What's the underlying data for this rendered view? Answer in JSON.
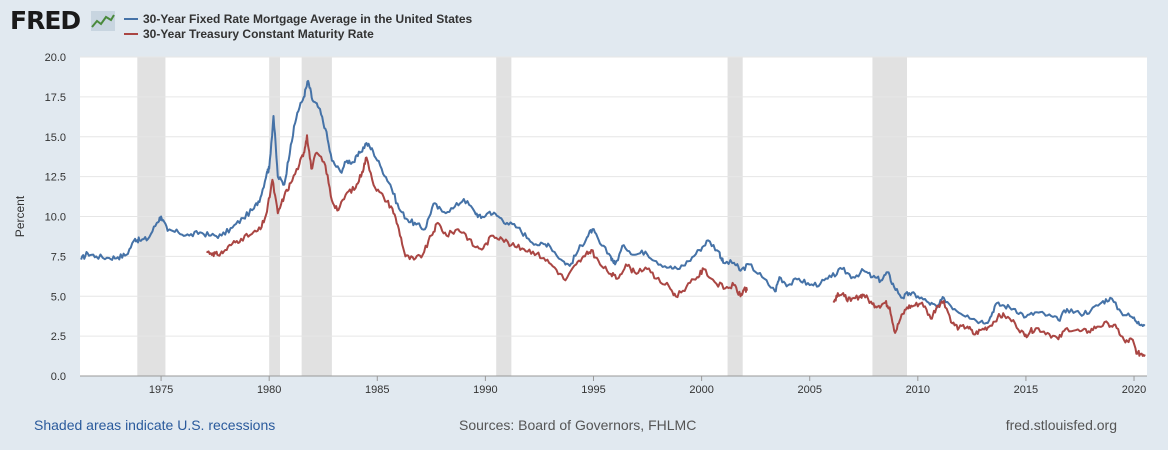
{
  "logo": {
    "text": "FRED",
    "icon": "chart-graph-icon"
  },
  "footer": {
    "recession_note": "Shaded areas indicate U.S. recessions",
    "sources": "Sources: Board of Governors, FHLMC",
    "site": "fred.stlouisfed.org"
  },
  "chart_data": {
    "type": "line",
    "ylabel": "Percent",
    "xlim": [
      1971.25,
      2020.6
    ],
    "ylim": [
      0,
      20
    ],
    "yticks": [
      0.0,
      2.5,
      5.0,
      7.5,
      10.0,
      12.5,
      15.0,
      17.5,
      20.0
    ],
    "ytick_labels": [
      "0.0",
      "2.5",
      "5.0",
      "7.5",
      "10.0",
      "12.5",
      "15.0",
      "17.5",
      "20.0"
    ],
    "xticks": [
      1975,
      1980,
      1985,
      1990,
      1995,
      2000,
      2005,
      2010,
      2015,
      2020
    ],
    "xtick_labels": [
      "1975",
      "1980",
      "1985",
      "1990",
      "1995",
      "2000",
      "2005",
      "2010",
      "2015",
      "2020"
    ],
    "grid": true,
    "legend_position": "top-left",
    "recessions": [
      [
        1973.9,
        1975.2
      ],
      [
        1980.0,
        1980.5
      ],
      [
        1981.5,
        1982.9
      ],
      [
        1990.5,
        1991.2
      ],
      [
        2001.2,
        2001.9
      ],
      [
        2007.9,
        2009.5
      ]
    ],
    "series": [
      {
        "name": "30-Year Fixed Rate Mortgage Average in the United States",
        "color": "#4572a7",
        "points": [
          [
            1971.3,
            7.3
          ],
          [
            1971.6,
            7.7
          ],
          [
            1972.0,
            7.5
          ],
          [
            1972.6,
            7.4
          ],
          [
            1973.0,
            7.45
          ],
          [
            1973.4,
            7.6
          ],
          [
            1973.8,
            8.6
          ],
          [
            1974.0,
            8.5
          ],
          [
            1974.4,
            8.6
          ],
          [
            1974.8,
            9.6
          ],
          [
            1975.0,
            10.0
          ],
          [
            1975.3,
            9.1
          ],
          [
            1975.8,
            9.0
          ],
          [
            1976.3,
            8.8
          ],
          [
            1976.8,
            9.0
          ],
          [
            1977.3,
            8.8
          ],
          [
            1977.8,
            8.8
          ],
          [
            1978.3,
            9.3
          ],
          [
            1978.8,
            9.9
          ],
          [
            1979.3,
            10.5
          ],
          [
            1979.6,
            11.2
          ],
          [
            1979.9,
            12.8
          ],
          [
            1980.0,
            13.0
          ],
          [
            1980.2,
            16.3
          ],
          [
            1980.4,
            12.5
          ],
          [
            1980.7,
            12.0
          ],
          [
            1981.0,
            14.5
          ],
          [
            1981.3,
            16.5
          ],
          [
            1981.6,
            17.5
          ],
          [
            1981.8,
            18.5
          ],
          [
            1982.0,
            17.3
          ],
          [
            1982.3,
            16.8
          ],
          [
            1982.6,
            15.5
          ],
          [
            1982.9,
            13.5
          ],
          [
            1983.3,
            12.8
          ],
          [
            1983.6,
            13.5
          ],
          [
            1983.9,
            13.4
          ],
          [
            1984.2,
            14.0
          ],
          [
            1984.5,
            14.6
          ],
          [
            1984.8,
            14.1
          ],
          [
            1985.2,
            13.0
          ],
          [
            1985.6,
            12.0
          ],
          [
            1986.0,
            10.5
          ],
          [
            1986.4,
            9.8
          ],
          [
            1986.8,
            9.5
          ],
          [
            1987.2,
            9.2
          ],
          [
            1987.6,
            10.8
          ],
          [
            1988.0,
            10.3
          ],
          [
            1988.5,
            10.5
          ],
          [
            1989.0,
            11.1
          ],
          [
            1989.5,
            10.3
          ],
          [
            1989.8,
            9.9
          ],
          [
            1990.2,
            10.3
          ],
          [
            1990.6,
            10.0
          ],
          [
            1991.0,
            9.6
          ],
          [
            1991.5,
            9.3
          ],
          [
            1992.0,
            8.6
          ],
          [
            1992.5,
            8.2
          ],
          [
            1992.9,
            8.3
          ],
          [
            1993.5,
            7.3
          ],
          [
            1993.9,
            6.9
          ],
          [
            1994.3,
            7.9
          ],
          [
            1994.7,
            8.7
          ],
          [
            1994.95,
            9.2
          ],
          [
            1995.3,
            8.3
          ],
          [
            1995.8,
            7.5
          ],
          [
            1996.0,
            7.0
          ],
          [
            1996.4,
            8.2
          ],
          [
            1996.9,
            7.6
          ],
          [
            1997.4,
            7.8
          ],
          [
            1997.9,
            7.2
          ],
          [
            1998.5,
            6.8
          ],
          [
            1998.9,
            6.7
          ],
          [
            1999.4,
            7.2
          ],
          [
            1999.9,
            7.9
          ],
          [
            2000.3,
            8.5
          ],
          [
            2000.8,
            7.8
          ],
          [
            2001.0,
            7.1
          ],
          [
            2001.5,
            7.1
          ],
          [
            2001.8,
            6.6
          ],
          [
            2002.2,
            7.0
          ],
          [
            2002.8,
            6.2
          ],
          [
            2003.4,
            5.3
          ],
          [
            2003.6,
            6.2
          ],
          [
            2004.0,
            5.7
          ],
          [
            2004.5,
            6.1
          ],
          [
            2005.0,
            5.7
          ],
          [
            2005.5,
            5.8
          ],
          [
            2006.0,
            6.2
          ],
          [
            2006.5,
            6.7
          ],
          [
            2007.0,
            6.2
          ],
          [
            2007.5,
            6.6
          ],
          [
            2007.9,
            6.2
          ],
          [
            2008.3,
            6.0
          ],
          [
            2008.6,
            6.5
          ],
          [
            2008.9,
            5.6
          ],
          [
            2009.3,
            4.9
          ],
          [
            2009.6,
            5.2
          ],
          [
            2010.0,
            5.0
          ],
          [
            2010.5,
            4.6
          ],
          [
            2010.9,
            4.3
          ],
          [
            2011.2,
            4.9
          ],
          [
            2011.7,
            4.2
          ],
          [
            2012.3,
            3.8
          ],
          [
            2012.9,
            3.4
          ],
          [
            2013.3,
            3.5
          ],
          [
            2013.6,
            4.5
          ],
          [
            2014.0,
            4.4
          ],
          [
            2014.5,
            4.2
          ],
          [
            2015.0,
            3.7
          ],
          [
            2015.5,
            4.0
          ],
          [
            2016.0,
            3.8
          ],
          [
            2016.5,
            3.5
          ],
          [
            2016.9,
            4.2
          ],
          [
            2017.5,
            3.9
          ],
          [
            2018.0,
            4.1
          ],
          [
            2018.5,
            4.6
          ],
          [
            2018.9,
            4.9
          ],
          [
            2019.4,
            4.0
          ],
          [
            2019.9,
            3.7
          ],
          [
            2020.2,
            3.4
          ],
          [
            2020.5,
            3.15
          ]
        ]
      },
      {
        "name": "30-Year Treasury Constant Maturity Rate",
        "color": "#aa4643",
        "segments": [
          [
            [
              1977.1,
              7.8
            ],
            [
              1977.4,
              7.7
            ],
            [
              1977.6,
              7.6
            ],
            [
              1977.9,
              7.8
            ],
            [
              1978.3,
              8.3
            ],
            [
              1978.7,
              8.6
            ],
            [
              1979.2,
              8.9
            ],
            [
              1979.6,
              9.2
            ],
            [
              1979.9,
              10.3
            ],
            [
              1980.15,
              12.3
            ],
            [
              1980.4,
              10.2
            ],
            [
              1980.7,
              11.3
            ],
            [
              1981.0,
              12.1
            ],
            [
              1981.4,
              13.3
            ],
            [
              1981.6,
              14.0
            ],
            [
              1981.75,
              15.1
            ],
            [
              1981.95,
              13.0
            ],
            [
              1982.2,
              14.0
            ],
            [
              1982.6,
              13.2
            ],
            [
              1982.9,
              11.0
            ],
            [
              1983.2,
              10.4
            ],
            [
              1983.6,
              11.5
            ],
            [
              1984.0,
              11.8
            ],
            [
              1984.3,
              12.8
            ],
            [
              1984.5,
              13.7
            ],
            [
              1984.9,
              11.8
            ],
            [
              1985.3,
              11.2
            ],
            [
              1985.7,
              10.5
            ],
            [
              1986.0,
              9.2
            ],
            [
              1986.3,
              7.5
            ],
            [
              1986.7,
              7.3
            ],
            [
              1987.1,
              7.6
            ],
            [
              1987.5,
              8.8
            ],
            [
              1987.8,
              9.6
            ],
            [
              1988.2,
              8.8
            ],
            [
              1988.7,
              9.2
            ],
            [
              1989.0,
              9.0
            ],
            [
              1989.5,
              8.1
            ],
            [
              1989.9,
              8.0
            ],
            [
              1990.3,
              8.8
            ],
            [
              1990.7,
              8.7
            ],
            [
              1991.2,
              8.2
            ],
            [
              1991.7,
              8.0
            ],
            [
              1992.2,
              7.8
            ],
            [
              1992.7,
              7.4
            ],
            [
              1993.2,
              6.8
            ],
            [
              1993.7,
              6.0
            ],
            [
              1994.2,
              7.0
            ],
            [
              1994.6,
              7.5
            ],
            [
              1994.9,
              7.9
            ],
            [
              1995.3,
              7.0
            ],
            [
              1995.8,
              6.4
            ],
            [
              1996.1,
              6.1
            ],
            [
              1996.5,
              7.0
            ],
            [
              1996.9,
              6.5
            ],
            [
              1997.4,
              6.8
            ],
            [
              1997.9,
              6.1
            ],
            [
              1998.5,
              5.6
            ],
            [
              1998.8,
              5.0
            ],
            [
              1999.3,
              5.6
            ],
            [
              1999.8,
              6.2
            ],
            [
              2000.1,
              6.7
            ],
            [
              2000.6,
              5.9
            ],
            [
              2001.1,
              5.5
            ],
            [
              2001.5,
              5.7
            ],
            [
              2001.8,
              5.0
            ],
            [
              2001.95,
              5.4
            ],
            [
              2002.1,
              5.35
            ]
          ],
          [
            [
              2006.1,
              4.6
            ],
            [
              2006.3,
              5.2
            ],
            [
              2006.6,
              5.0
            ],
            [
              2006.9,
              4.7
            ],
            [
              2007.3,
              5.0
            ],
            [
              2007.5,
              5.1
            ],
            [
              2007.9,
              4.5
            ],
            [
              2008.2,
              4.4
            ],
            [
              2008.5,
              4.6
            ],
            [
              2008.7,
              4.3
            ],
            [
              2008.95,
              2.7
            ],
            [
              2009.2,
              3.6
            ],
            [
              2009.5,
              4.3
            ],
            [
              2009.8,
              4.4
            ],
            [
              2010.2,
              4.6
            ],
            [
              2010.6,
              3.6
            ],
            [
              2010.9,
              4.4
            ],
            [
              2011.2,
              4.7
            ],
            [
              2011.6,
              3.3
            ],
            [
              2011.9,
              3.0
            ],
            [
              2012.3,
              3.1
            ],
            [
              2012.6,
              2.6
            ],
            [
              2012.95,
              2.9
            ],
            [
              2013.3,
              3.1
            ],
            [
              2013.7,
              3.7
            ],
            [
              2014.0,
              3.8
            ],
            [
              2014.5,
              3.3
            ],
            [
              2014.95,
              2.5
            ],
            [
              2015.2,
              2.8
            ],
            [
              2015.5,
              3.0
            ],
            [
              2016.0,
              2.7
            ],
            [
              2016.5,
              2.3
            ],
            [
              2016.9,
              3.0
            ],
            [
              2017.5,
              2.8
            ],
            [
              2017.9,
              2.8
            ],
            [
              2018.3,
              3.1
            ],
            [
              2018.8,
              3.3
            ],
            [
              2019.2,
              3.0
            ],
            [
              2019.6,
              2.1
            ],
            [
              2019.9,
              2.3
            ],
            [
              2020.15,
              1.4
            ],
            [
              2020.35,
              1.4
            ],
            [
              2020.5,
              1.35
            ]
          ]
        ]
      }
    ]
  }
}
